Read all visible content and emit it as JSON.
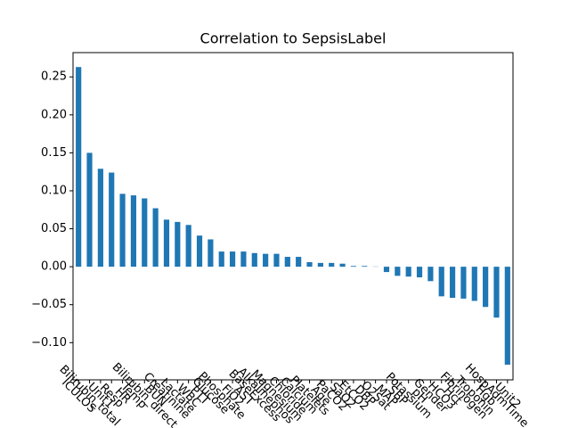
{
  "chart_data": {
    "type": "bar",
    "title": "Correlation to SepsisLabel",
    "categories": [
      "ICULOS",
      "Bilirubin_total",
      "Unit1",
      "Resp",
      "HR",
      "Temp",
      "Bilirubin_direct",
      "BUN",
      "Creatinine",
      "Lactate",
      "WBC",
      "PTT",
      "Glucose",
      "Phosphate",
      "FiO2",
      "AST",
      "BaseExcess",
      "Alkalinephos",
      "Magnesium",
      "Chloride",
      "Calcium",
      "Platelets",
      "Age",
      "PaCO2",
      "SaO2",
      "EtCO2",
      "DBP",
      "O2Sat",
      "MAP",
      "SBP",
      "Potassium",
      "pH",
      "Gender",
      "HCO3",
      "Hct",
      "Fibrinogen",
      "Troponin",
      "Hgb",
      "HospAdmTime",
      "Unit2"
    ],
    "values": [
      0.263,
      0.15,
      0.129,
      0.124,
      0.096,
      0.094,
      0.09,
      0.077,
      0.062,
      0.059,
      0.055,
      0.041,
      0.036,
      0.02,
      0.02,
      0.02,
      0.018,
      0.017,
      0.017,
      0.013,
      0.013,
      0.006,
      0.005,
      0.005,
      0.004,
      0.001,
      0.001,
      0.0003,
      -0.007,
      -0.012,
      -0.013,
      -0.014,
      -0.019,
      -0.039,
      -0.041,
      -0.042,
      -0.045,
      -0.053,
      -0.067,
      -0.129
    ],
    "color": "#1f77b4",
    "ylim": [
      -0.149,
      0.282
    ],
    "yticks": [
      {
        "value": -0.1,
        "label": "−0.10"
      },
      {
        "value": -0.05,
        "label": "−0.05"
      },
      {
        "value": 0,
        "label": "0.00"
      },
      {
        "value": 0.05,
        "label": "0.05"
      },
      {
        "value": 0.1,
        "label": "0.10"
      },
      {
        "value": 0.15,
        "label": "0.15"
      },
      {
        "value": 0.2,
        "label": "0.20"
      },
      {
        "value": 0.25,
        "label": "0.25"
      }
    ],
    "grid": false
  }
}
